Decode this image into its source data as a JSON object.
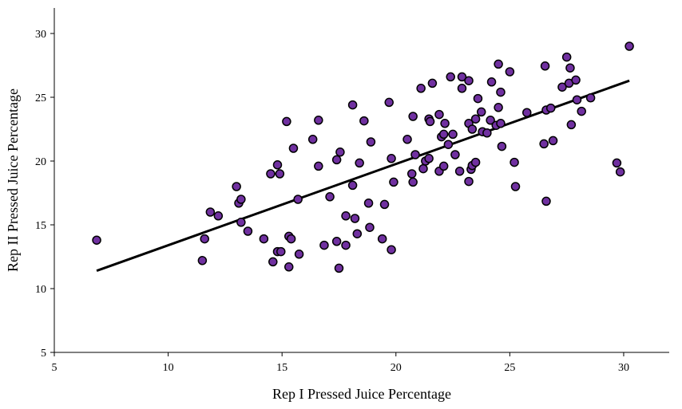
{
  "chart_data": {
    "type": "scatter",
    "title": "",
    "xlabel": "Rep I Pressed Juice Percentage",
    "ylabel": "Rep II Pressed Juice Percentage",
    "xlim": [
      5,
      32
    ],
    "ylim": [
      5,
      32
    ],
    "xticks": [
      5,
      10,
      15,
      20,
      25,
      30
    ],
    "yticks": [
      5,
      10,
      15,
      20,
      25,
      30
    ],
    "grid": false,
    "marker_color": "#7030A0",
    "marker_edge": "#000000",
    "trendline": {
      "x": [
        6.86,
        30.25
      ],
      "y": [
        11.4,
        26.3
      ],
      "color": "#000000"
    },
    "points": [
      [
        6.86,
        13.8
      ],
      [
        11.5,
        12.2
      ],
      [
        11.6,
        13.9
      ],
      [
        11.85,
        16.0
      ],
      [
        12.2,
        15.7
      ],
      [
        13.0,
        18.0
      ],
      [
        13.1,
        16.7
      ],
      [
        13.2,
        17.0
      ],
      [
        13.2,
        15.2
      ],
      [
        13.5,
        14.5
      ],
      [
        14.2,
        13.9
      ],
      [
        14.5,
        19.0
      ],
      [
        14.6,
        12.1
      ],
      [
        14.8,
        19.7
      ],
      [
        14.8,
        12.9
      ],
      [
        14.9,
        19.0
      ],
      [
        14.95,
        12.9
      ],
      [
        15.2,
        23.1
      ],
      [
        15.3,
        14.1
      ],
      [
        15.4,
        13.9
      ],
      [
        15.3,
        11.7
      ],
      [
        15.5,
        21.0
      ],
      [
        15.7,
        17.0
      ],
      [
        15.75,
        12.7
      ],
      [
        16.35,
        21.7
      ],
      [
        16.6,
        19.6
      ],
      [
        16.6,
        23.2
      ],
      [
        16.85,
        13.4
      ],
      [
        17.1,
        17.2
      ],
      [
        17.4,
        20.1
      ],
      [
        17.4,
        13.7
      ],
      [
        17.5,
        11.6
      ],
      [
        17.55,
        20.7
      ],
      [
        17.8,
        13.4
      ],
      [
        17.8,
        15.7
      ],
      [
        18.1,
        24.4
      ],
      [
        18.1,
        18.1
      ],
      [
        18.2,
        15.5
      ],
      [
        18.3,
        14.3
      ],
      [
        18.4,
        19.85
      ],
      [
        18.6,
        23.15
      ],
      [
        18.8,
        16.7
      ],
      [
        18.85,
        14.8
      ],
      [
        18.9,
        21.5
      ],
      [
        19.4,
        13.9
      ],
      [
        19.5,
        16.6
      ],
      [
        19.7,
        24.6
      ],
      [
        19.8,
        20.2
      ],
      [
        19.8,
        13.05
      ],
      [
        19.9,
        18.35
      ],
      [
        20.5,
        21.7
      ],
      [
        20.7,
        19.0
      ],
      [
        20.75,
        23.5
      ],
      [
        20.75,
        18.35
      ],
      [
        20.85,
        20.5
      ],
      [
        21.1,
        25.7
      ],
      [
        21.2,
        19.4
      ],
      [
        21.3,
        20.0
      ],
      [
        21.45,
        23.3
      ],
      [
        21.5,
        23.1
      ],
      [
        21.45,
        20.2
      ],
      [
        21.6,
        26.1
      ],
      [
        21.9,
        19.2
      ],
      [
        21.9,
        23.65
      ],
      [
        22.0,
        21.9
      ],
      [
        22.1,
        22.1
      ],
      [
        22.1,
        19.6
      ],
      [
        22.15,
        22.95
      ],
      [
        22.3,
        21.3
      ],
      [
        22.4,
        26.6
      ],
      [
        22.5,
        22.1
      ],
      [
        22.6,
        20.5
      ],
      [
        22.8,
        19.2
      ],
      [
        22.9,
        26.6
      ],
      [
        22.9,
        25.7
      ],
      [
        23.2,
        26.3
      ],
      [
        23.2,
        22.95
      ],
      [
        23.2,
        18.4
      ],
      [
        23.3,
        19.35
      ],
      [
        23.35,
        19.65
      ],
      [
        23.35,
        22.5
      ],
      [
        23.5,
        23.3
      ],
      [
        23.5,
        19.9
      ],
      [
        23.6,
        24.9
      ],
      [
        23.75,
        23.85
      ],
      [
        23.8,
        22.3
      ],
      [
        24.0,
        22.2
      ],
      [
        24.15,
        23.2
      ],
      [
        24.2,
        26.2
      ],
      [
        24.4,
        22.8
      ],
      [
        24.5,
        27.6
      ],
      [
        24.5,
        24.2
      ],
      [
        24.6,
        25.4
      ],
      [
        24.65,
        21.15
      ],
      [
        24.6,
        22.95
      ],
      [
        25.0,
        27.0
      ],
      [
        25.2,
        19.9
      ],
      [
        25.25,
        18.0
      ],
      [
        25.75,
        23.8
      ],
      [
        26.5,
        21.35
      ],
      [
        26.55,
        27.45
      ],
      [
        26.6,
        24.0
      ],
      [
        26.6,
        16.85
      ],
      [
        26.8,
        24.15
      ],
      [
        26.9,
        21.6
      ],
      [
        27.3,
        25.8
      ],
      [
        27.5,
        28.15
      ],
      [
        27.6,
        26.1
      ],
      [
        27.65,
        27.3
      ],
      [
        27.7,
        22.85
      ],
      [
        27.9,
        26.35
      ],
      [
        27.95,
        24.8
      ],
      [
        28.15,
        23.9
      ],
      [
        28.55,
        24.95
      ],
      [
        29.7,
        19.85
      ],
      [
        29.85,
        19.15
      ],
      [
        30.25,
        29.0
      ]
    ]
  }
}
